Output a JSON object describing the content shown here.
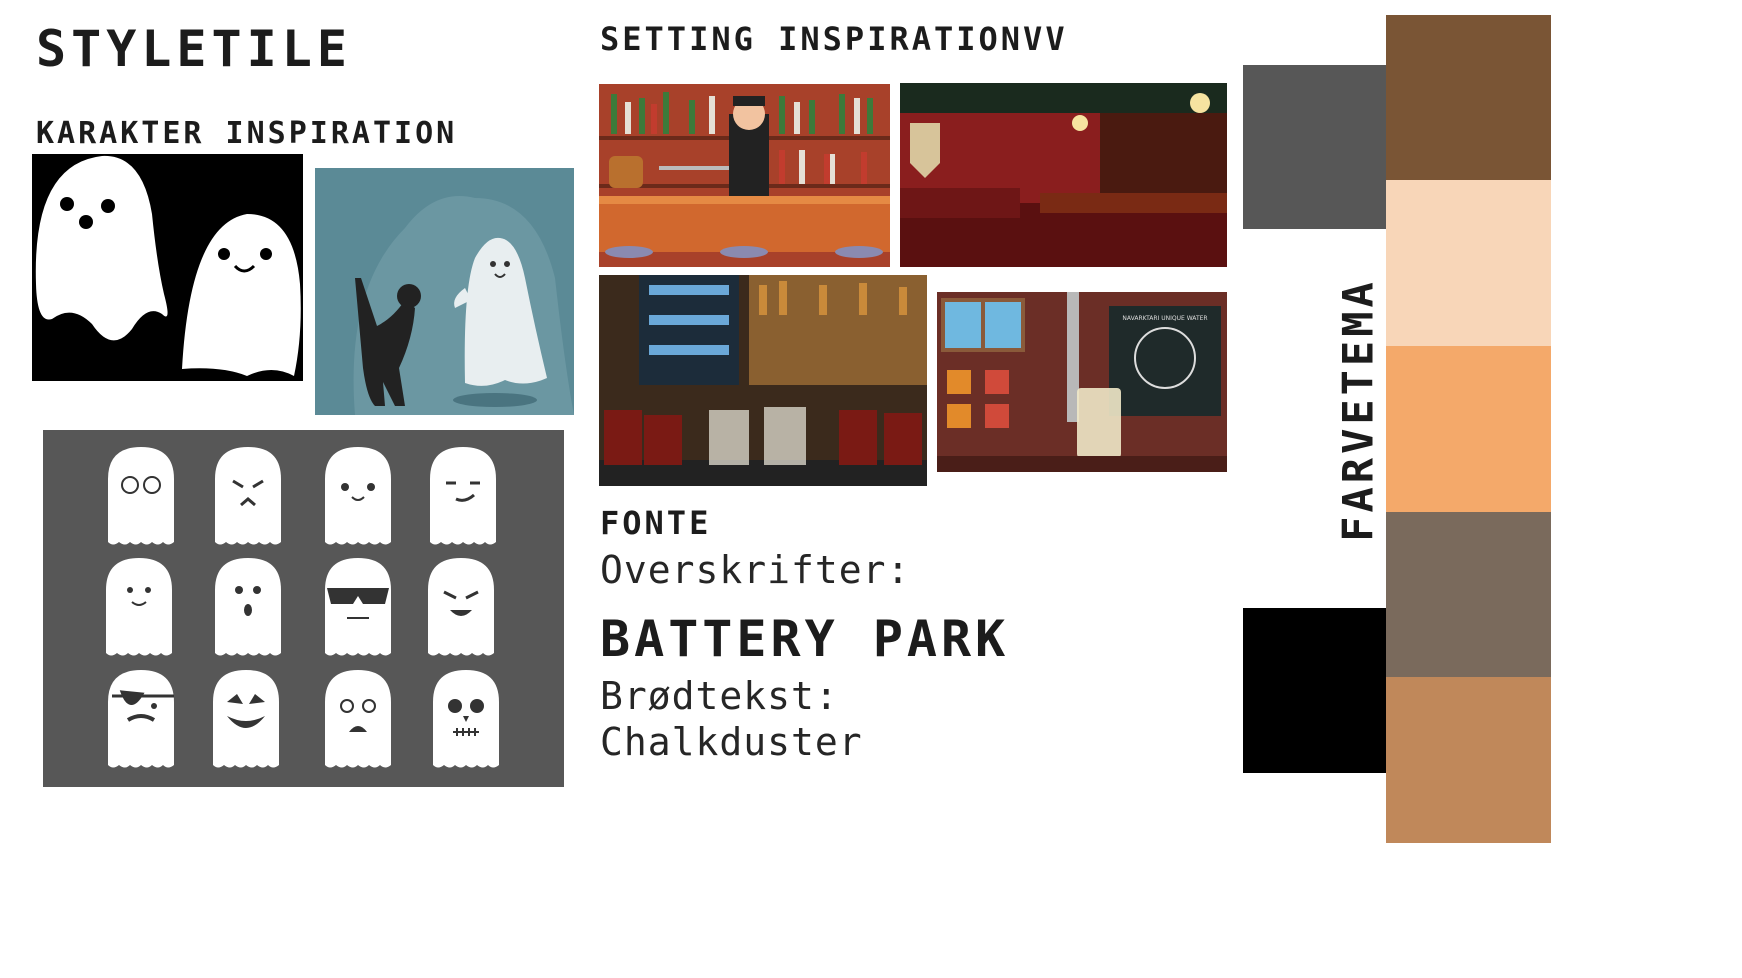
{
  "title": "STYLETILE",
  "character_heading": "KARAKTER INSPIRATION",
  "setting_heading": "SETTING INSPIRATIONVV",
  "fonts": {
    "heading": "FONTE",
    "headings_label": "Overskrifter:",
    "headings_font": "BATTERY PARK",
    "body_label": "Brødtekst:",
    "body_font": "Chalkduster"
  },
  "color_theme_label": "FARVETEMA",
  "palette": {
    "strip": [
      "#7a5535",
      "#f8d6b8",
      "#f4a96a",
      "#7a6a5c",
      "#c0885a"
    ],
    "blocks": [
      "#575757",
      "#000000"
    ]
  },
  "images": {
    "ghosts_black": "two-ghosts-on-black",
    "ghost_cat": "ghost-and-black-cat",
    "ghost_faces": "ghost-face-icon-grid",
    "bar_cartoon": "cartoon-bartender",
    "pub_interior": "red-pub-interior",
    "drinks_bar": "cocktail-glasses-bar",
    "flat_pub": "flat-illustration-pub",
    "sign_text": "NAVARKTARI UNIQUE WATER"
  }
}
